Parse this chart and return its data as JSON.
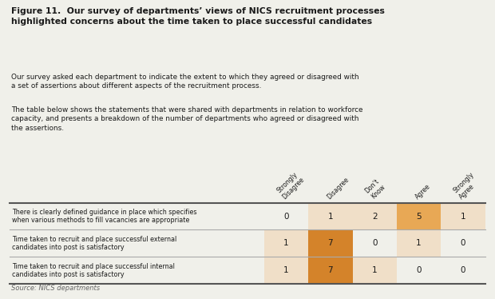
{
  "title_bold": "Figure 11.  Our survey of departments’ views of NICS recruitment processes\nhighlighted concerns about the time taken to place successful candidates",
  "body_text1": "Our survey asked each department to indicate the extent to which they agreed or disagreed with\na set of assertions about different aspects of the recruitment process.",
  "body_text2": "The table below shows the statements that were shared with departments in relation to workforce\ncapacity, and presents a breakdown of the number of departments who agreed or disagreed with\nthe assertions.",
  "source_text": "Source: NICS departments",
  "col_headers": [
    "Strongly\nDisagree",
    "Disagree",
    "Don’t\nKnow",
    "Agree",
    "Strongly\nAgree"
  ],
  "row_labels": [
    "There is clearly defined guidance in place which specifies\nwhen various methods to fill vacancies are appropriate",
    "Time taken to recruit and place successful external\ncandidates into post is satisfactory",
    "Time taken to recruit and place successful internal\ncandidates into post is satisfactory"
  ],
  "table_data": [
    [
      0,
      1,
      2,
      5,
      1
    ],
    [
      1,
      7,
      0,
      1,
      0
    ],
    [
      1,
      7,
      1,
      0,
      0
    ]
  ],
  "cell_colors": [
    [
      "#f0f0ea",
      "#f0dfc8",
      "#f0dfc8",
      "#e8a855",
      "#f0dfc8"
    ],
    [
      "#f0dfc8",
      "#d4832a",
      "#f0f0ea",
      "#f0dfc8",
      "#f0f0ea"
    ],
    [
      "#f0dfc8",
      "#d4832a",
      "#f0dfc8",
      "#f0f0ea",
      "#f0f0ea"
    ]
  ],
  "bg_color": "#f0f0ea",
  "line_color_thick": "#555555",
  "line_color_thin": "#aaaaaa",
  "text_color": "#1a1a1a",
  "source_color": "#666666"
}
